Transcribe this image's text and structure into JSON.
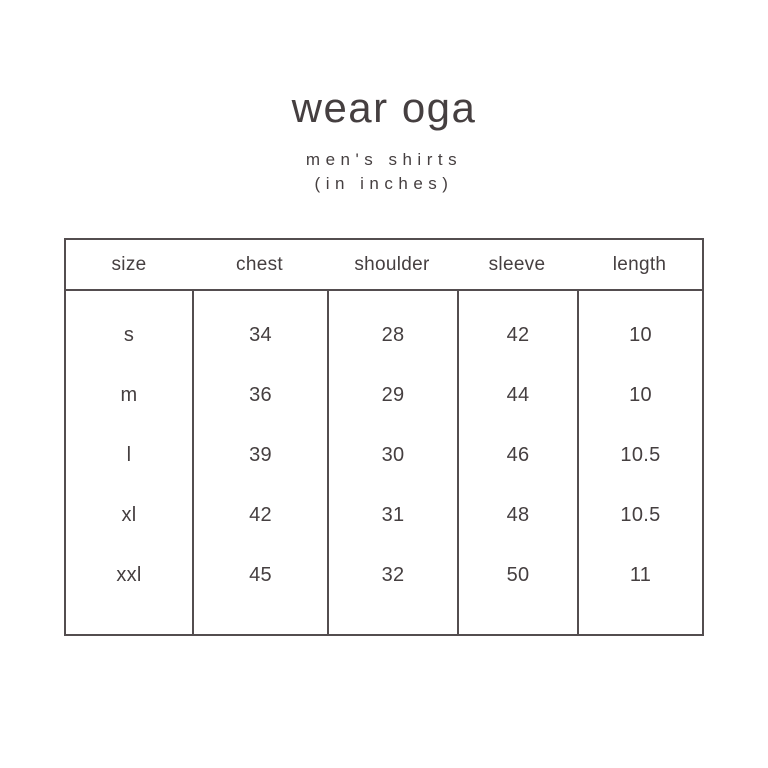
{
  "brand": "wear oga",
  "subtitle": "men's shirts",
  "subtitle_note": "(in inches)",
  "colors": {
    "background": "#ffffff",
    "text": "#453f40",
    "table_border": "#534d4f"
  },
  "chart_data": {
    "type": "table",
    "columns": [
      "size",
      "chest",
      "shoulder",
      "sleeve",
      "length"
    ],
    "rows": [
      [
        "s",
        "34",
        "28",
        "42",
        "10"
      ],
      [
        "m",
        "36",
        "29",
        "44",
        "10"
      ],
      [
        "l",
        "39",
        "30",
        "46",
        "10.5"
      ],
      [
        "xl",
        "42",
        "31",
        "48",
        "10.5"
      ],
      [
        "xxl",
        "45",
        "32",
        "50",
        "11"
      ]
    ]
  }
}
